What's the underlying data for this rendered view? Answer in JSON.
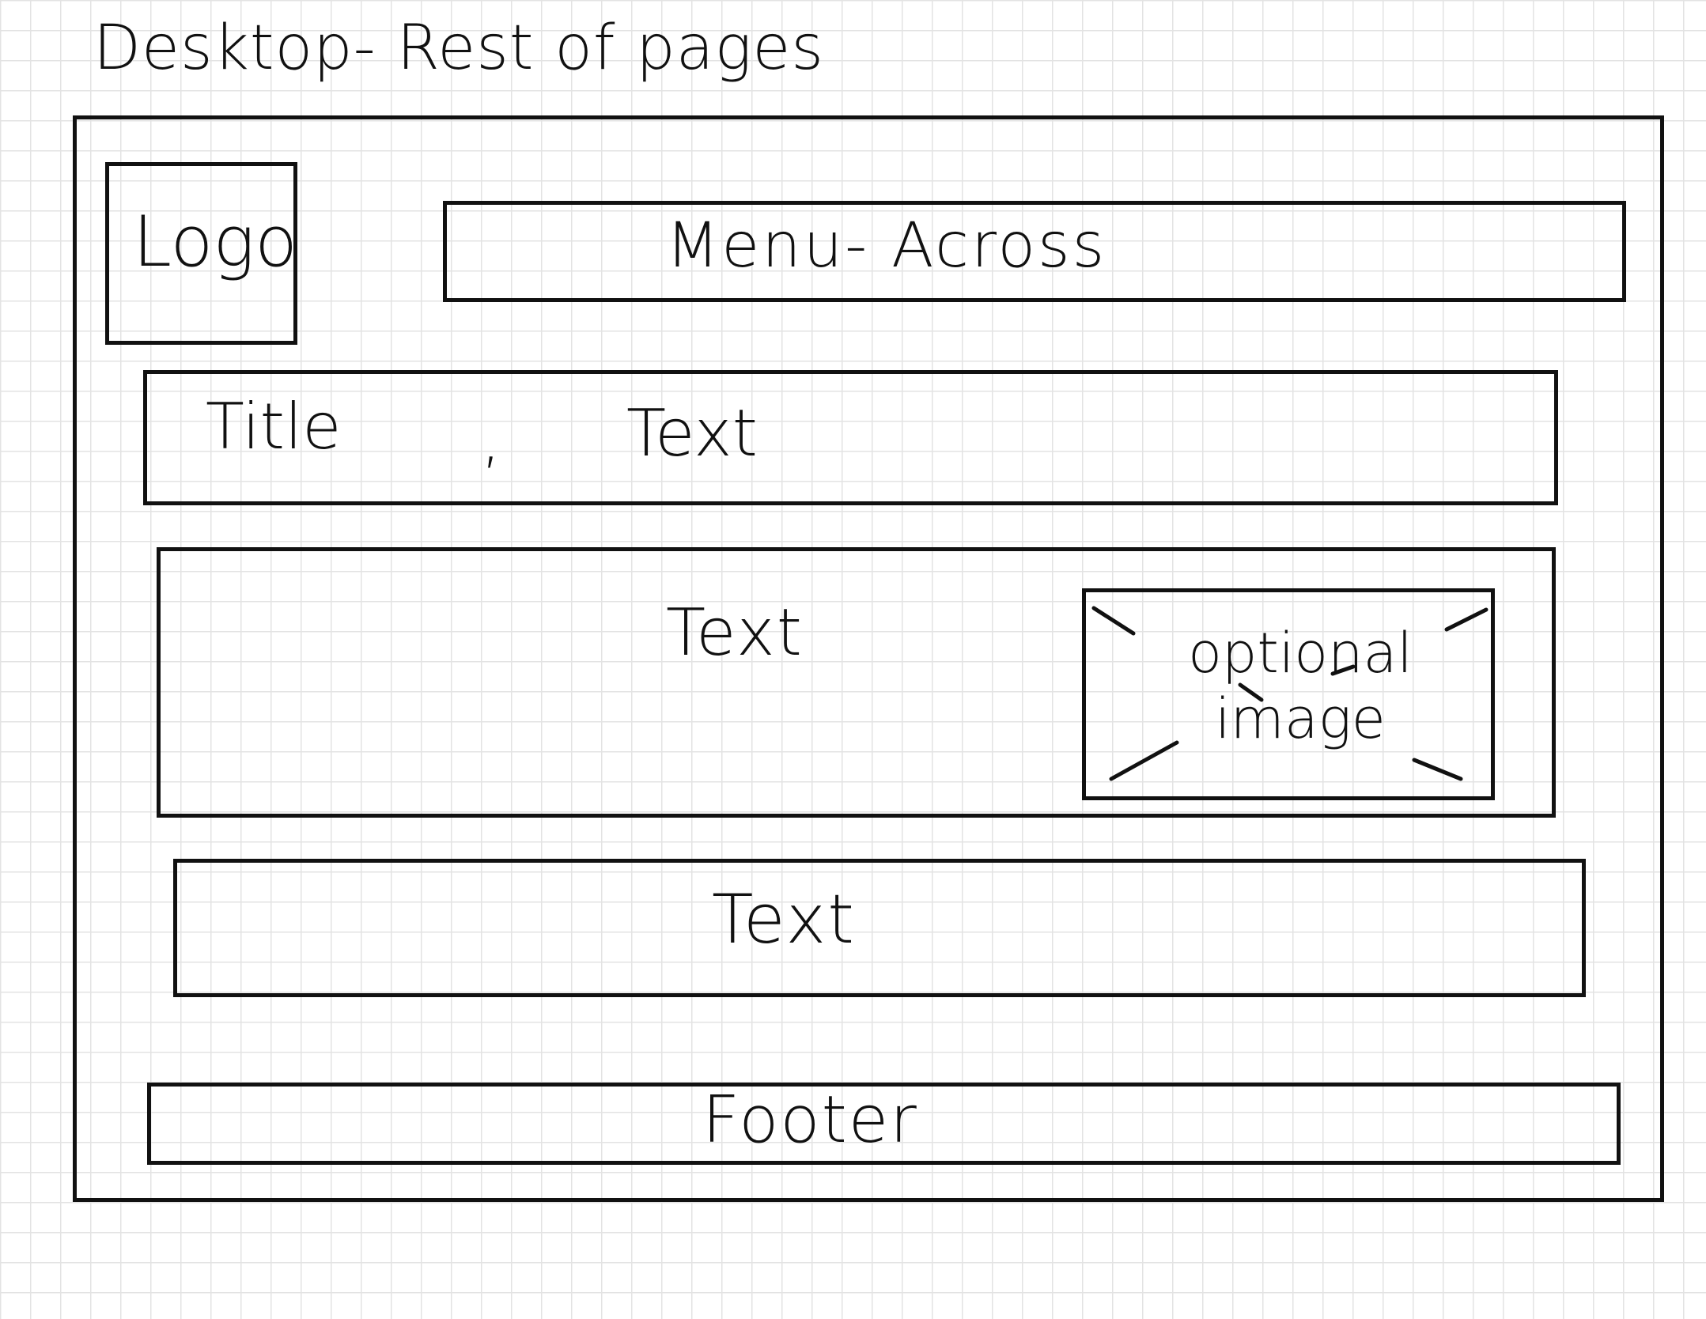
{
  "sketch": {
    "page_title": "Desktop- Rest of pages",
    "logo": "Logo",
    "menu": "Menu- Across",
    "title_row": {
      "title": "Title",
      "separator": ",",
      "text": "Text"
    },
    "content_text": "Text",
    "image_placeholder": "optional image",
    "second_text": "Text",
    "footer": "Footer"
  },
  "colors": {
    "ink": "#111111",
    "grid": "#e3e3e3",
    "paper": "#ffffff"
  }
}
